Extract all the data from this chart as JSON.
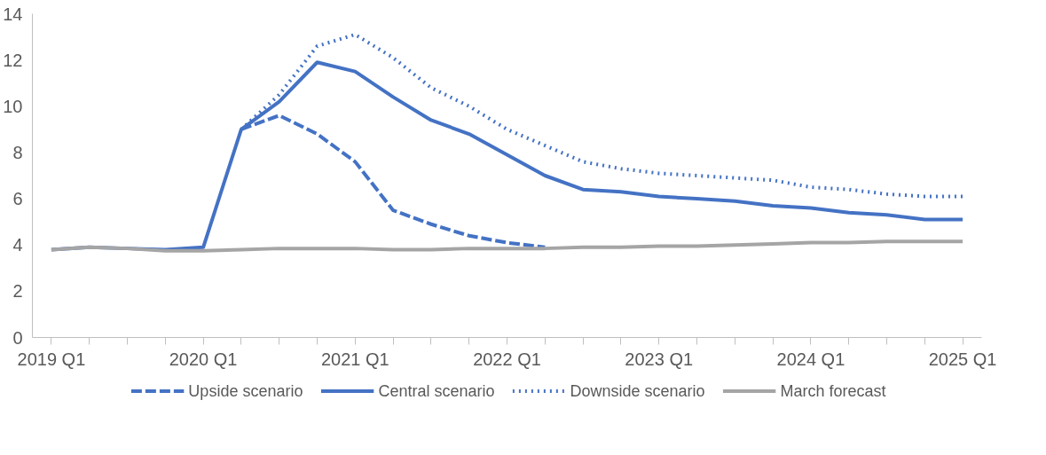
{
  "chart_data": {
    "type": "line",
    "categories": [
      "2019 Q1",
      null,
      null,
      null,
      "2020 Q1",
      null,
      null,
      null,
      "2021 Q1",
      null,
      null,
      null,
      "2022 Q1",
      null,
      null,
      null,
      "2023 Q1",
      null,
      null,
      null,
      "2024 Q1",
      null,
      null,
      null,
      "2025 Q1"
    ],
    "series": [
      {
        "name": "Upside scenario",
        "color": "#4472c4",
        "line_style": "dashed",
        "values": [
          null,
          null,
          null,
          null,
          null,
          9.0,
          9.6,
          8.8,
          7.6,
          5.5,
          4.9,
          4.4,
          4.1,
          3.9,
          null,
          null,
          null,
          null,
          null,
          null,
          null,
          null,
          null,
          null,
          null
        ]
      },
      {
        "name": "Central scenario",
        "color": "#4472c4",
        "line_style": "solid",
        "values": [
          3.8,
          3.9,
          3.85,
          3.8,
          3.9,
          9.0,
          10.2,
          11.9,
          11.5,
          10.4,
          9.4,
          8.8,
          7.9,
          7.0,
          6.4,
          6.3,
          6.1,
          6.0,
          5.9,
          5.7,
          5.6,
          5.4,
          5.3,
          5.1,
          5.1
        ]
      },
      {
        "name": "Downside scenario",
        "color": "#4472c4",
        "line_style": "dotted",
        "values": [
          null,
          null,
          null,
          null,
          null,
          9.0,
          10.5,
          12.6,
          13.1,
          12.1,
          10.8,
          10.0,
          9.0,
          8.3,
          7.6,
          7.3,
          7.1,
          7.0,
          6.9,
          6.8,
          6.5,
          6.4,
          6.2,
          6.1,
          6.1
        ]
      },
      {
        "name": "March forecast",
        "color": "#a5a5a5",
        "line_style": "solid",
        "values": [
          3.8,
          3.9,
          3.85,
          3.75,
          3.75,
          3.8,
          3.85,
          3.85,
          3.85,
          3.8,
          3.8,
          3.85,
          3.85,
          3.85,
          3.9,
          3.9,
          3.95,
          3.95,
          4.0,
          4.05,
          4.1,
          4.1,
          4.15,
          4.15,
          4.15
        ]
      }
    ],
    "ylim": [
      0,
      14
    ],
    "yticks": [
      0,
      2,
      4,
      6,
      8,
      10,
      12,
      14
    ],
    "grid": false,
    "legend": "bottom"
  }
}
